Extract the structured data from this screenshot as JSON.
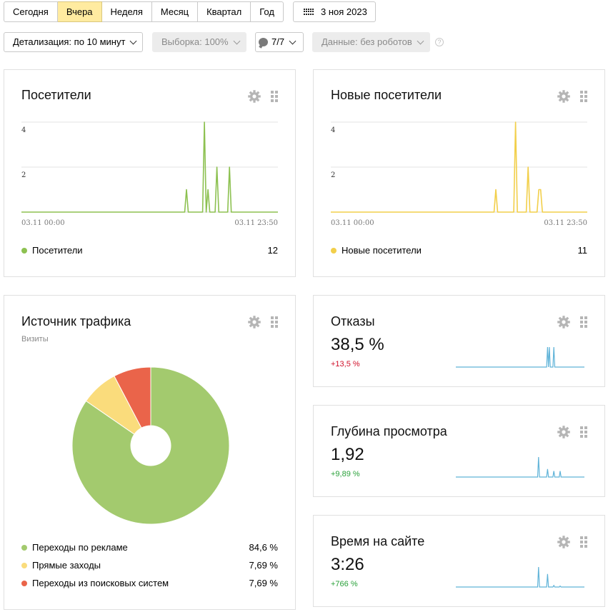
{
  "toolbar": {
    "periods": [
      "Сегодня",
      "Вчера",
      "Неделя",
      "Месяц",
      "Квартал",
      "Год"
    ],
    "active_period": "Вчера",
    "date": "3 ноя 2023"
  },
  "filters": {
    "detail": "Детализация: по 10 минут",
    "sample": "Выборка: 100%",
    "attribution": "7/7",
    "data": "Данные: без роботов",
    "help": "?"
  },
  "colors": {
    "visitors": "#8dc151",
    "new_visitors": "#f2cf4a",
    "spark": "#5fb3d8",
    "negative": "#d0102a",
    "positive": "#2aa13a"
  },
  "visitors_card": {
    "title": "Посетители",
    "legend_label": "Посетители",
    "total": "12",
    "x_start": "03.11 00:00",
    "x_end": "03.11 23:50",
    "y_ticks": [
      "4",
      "2"
    ],
    "chart_data": {
      "type": "line",
      "ylim": [
        0,
        4
      ],
      "x_range": [
        "03.11 00:00",
        "03.11 23:50"
      ],
      "points_count": 144,
      "spikes": [
        {
          "index": 92,
          "value": 1
        },
        {
          "index": 102,
          "value": 4
        },
        {
          "index": 104,
          "value": 1
        },
        {
          "index": 109,
          "value": 2
        },
        {
          "index": 116,
          "value": 2
        }
      ]
    }
  },
  "new_visitors_card": {
    "title": "Новые посетители",
    "legend_label": "Новые посетители",
    "total": "11",
    "x_start": "03.11 00:00",
    "x_end": "03.11 23:50",
    "y_ticks": [
      "4",
      "2"
    ],
    "chart_data": {
      "type": "line",
      "ylim": [
        0,
        4
      ],
      "x_range": [
        "03.11 00:00",
        "03.11 23:50"
      ],
      "points_count": 144,
      "spikes": [
        {
          "index": 92,
          "value": 1
        },
        {
          "index": 103,
          "value": 4
        },
        {
          "index": 110,
          "value": 2
        },
        {
          "index": 116,
          "value": 1
        },
        {
          "index": 117,
          "value": 1
        }
      ]
    }
  },
  "traffic_card": {
    "title": "Источник трафика",
    "subtitle": "Визиты",
    "chart_data": {
      "type": "pie",
      "slices": [
        {
          "label": "Переходы по рекламе",
          "value": 84.6,
          "display": "84,6 %",
          "color": "#a3ca6e"
        },
        {
          "label": "Прямые заходы",
          "value": 7.69,
          "display": "7,69 %",
          "color": "#fadc7c"
        },
        {
          "label": "Переходы из поисковых систем",
          "value": 7.69,
          "display": "7,69 %",
          "color": "#ea644a"
        }
      ]
    }
  },
  "bounce_card": {
    "title": "Отказы",
    "value": "38,5 %",
    "delta": "+13,5 %",
    "delta_color": "#d0102a",
    "chart_data": {
      "type": "line",
      "points_count": 144,
      "spikes": [
        {
          "index": 102,
          "value": 1
        },
        {
          "index": 104,
          "value": 1
        },
        {
          "index": 109,
          "value": 1
        }
      ]
    }
  },
  "depth_card": {
    "title": "Глубина просмотра",
    "value": "1,92",
    "delta": "+9,89 %",
    "delta_color": "#2aa13a",
    "chart_data": {
      "type": "line",
      "points_count": 144,
      "spikes": [
        {
          "index": 92,
          "value": 1
        },
        {
          "index": 102,
          "value": 0.4
        },
        {
          "index": 109,
          "value": 0.3
        },
        {
          "index": 116,
          "value": 0.3
        }
      ]
    }
  },
  "time_card": {
    "title": "Время на сайте",
    "value": "3:26",
    "delta": "+766 %",
    "delta_color": "#2aa13a",
    "chart_data": {
      "type": "line",
      "points_count": 144,
      "spikes": [
        {
          "index": 92,
          "value": 1
        },
        {
          "index": 102,
          "value": 0.65
        },
        {
          "index": 109,
          "value": 0.08
        },
        {
          "index": 116,
          "value": 0.05
        }
      ]
    }
  }
}
